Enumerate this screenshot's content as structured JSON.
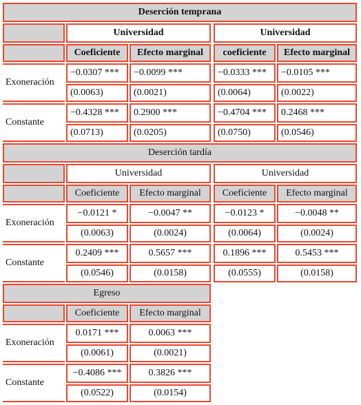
{
  "sections": [
    {
      "title": "Deserción temprana",
      "groups": [
        "Universidad",
        "Universidad"
      ],
      "headers": [
        "Coeficiente",
        "Efecto marginal",
        "coeficiente",
        "Efecto marginal"
      ],
      "rows": [
        {
          "label": "Exoneración",
          "values": [
            "−0.0307 ***",
            "−0.0099 ***",
            "−0.0333 ***",
            "−0.0105 ***"
          ],
          "errors": [
            "(0.0063)",
            "(0.0021)",
            "(0.0064)",
            "(0.0022)"
          ]
        },
        {
          "label": "Constante",
          "values": [
            "−0.4328 ***",
            "0.2900 ***",
            "−0.4704 ***",
            "0.2468 ***"
          ],
          "errors": [
            "(0.0713)",
            "(0.0205)",
            "(0.0750)",
            "(0.0546)"
          ]
        }
      ]
    },
    {
      "title": "Deserción tardía",
      "groups": [
        "Universidad",
        "Universidad"
      ],
      "headers": [
        "Coeficiente",
        "Efecto marginal",
        "Coeficiente",
        "Efecto marginal"
      ],
      "rows": [
        {
          "label": "Exoneración",
          "values": [
            "−0.0121 *",
            "−0.0047 **",
            "−0.0123 *",
            "−0.0048 **"
          ],
          "errors": [
            "(0.0063)",
            "(0.0024)",
            "(0.0064)",
            "(0.0024)"
          ]
        },
        {
          "label": "Constante",
          "values": [
            "0.2409 ***",
            "0.5657 ***",
            "0.1896 ***",
            "0.5453 ***"
          ],
          "errors": [
            "(0.0546)",
            "(0.0158)",
            "(0.0555)",
            "(0.0158)"
          ]
        }
      ]
    },
    {
      "title": "Egreso",
      "headers": [
        "Coeficiente",
        "Efecto marginal"
      ],
      "rows": [
        {
          "label": "Exoneración",
          "values": [
            "0.0171 ***",
            "0.0063 ***"
          ],
          "errors": [
            "(0.0061)",
            "(0.0021)"
          ]
        },
        {
          "label": "Constante",
          "values": [
            "−0.4086 ***",
            "0.3826 ***"
          ],
          "errors": [
            "(0.0522)",
            "(0.0154)"
          ]
        }
      ]
    }
  ]
}
